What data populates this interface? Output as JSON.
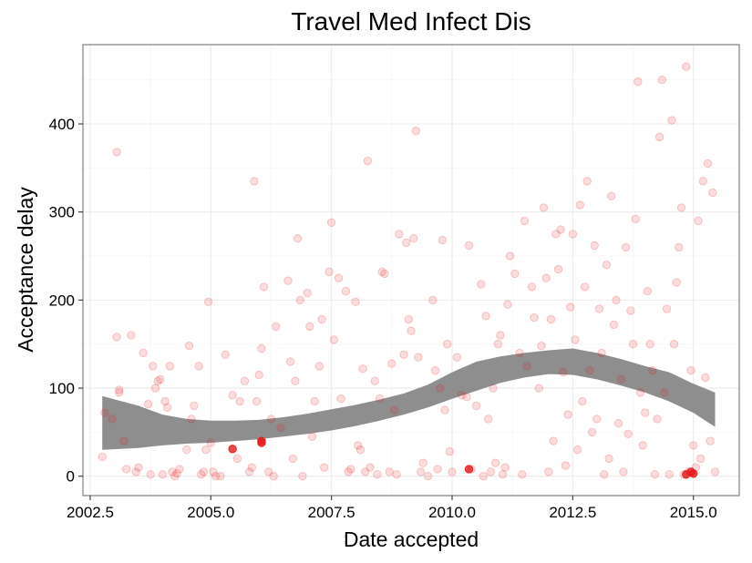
{
  "chart_data": {
    "type": "scatter",
    "title": "Travel Med Infect Dis",
    "xlabel": "Date accepted",
    "ylabel": "Acceptance delay",
    "xlim": [
      2002.35,
      2015.95
    ],
    "ylim": [
      -22,
      490
    ],
    "x_ticks": [
      2002.5,
      2005.0,
      2007.5,
      2010.0,
      2012.5,
      2015.0
    ],
    "x_tick_labels": [
      "2002.5",
      "2005.0",
      "2007.5",
      "2010.0",
      "2012.5",
      "2015.0"
    ],
    "y_ticks": [
      0,
      100,
      200,
      300,
      400
    ],
    "y_tick_labels": [
      "0",
      "100",
      "200",
      "300",
      "400"
    ],
    "grid": true,
    "legend": "none",
    "point_color": "#e41a1c",
    "point_opacity": 0.15,
    "highlight_opacity": 0.8,
    "band_color": "#888888",
    "series": [
      {
        "points": [
          [
            2002.75,
            22
          ],
          [
            2002.8,
            72
          ],
          [
            2002.95,
            65
          ],
          [
            2003.05,
            368
          ],
          [
            2003.05,
            158
          ],
          [
            2003.1,
            95
          ],
          [
            2003.1,
            98
          ],
          [
            2003.2,
            40
          ],
          [
            2003.25,
            8
          ],
          [
            2003.35,
            160
          ],
          [
            2003.45,
            5
          ],
          [
            2003.5,
            10
          ],
          [
            2003.6,
            140
          ],
          [
            2003.7,
            82
          ],
          [
            2003.75,
            2
          ],
          [
            2003.8,
            125
          ],
          [
            2003.85,
            100
          ],
          [
            2003.9,
            108
          ],
          [
            2003.95,
            110
          ],
          [
            2004.0,
            2
          ],
          [
            2004.05,
            85
          ],
          [
            2004.1,
            78
          ],
          [
            2004.15,
            125
          ],
          [
            2004.2,
            5
          ],
          [
            2004.25,
            0
          ],
          [
            2004.3,
            3
          ],
          [
            2004.35,
            8
          ],
          [
            2004.5,
            30
          ],
          [
            2004.55,
            148
          ],
          [
            2004.6,
            65
          ],
          [
            2004.65,
            80
          ],
          [
            2004.75,
            125
          ],
          [
            2004.8,
            2
          ],
          [
            2004.85,
            5
          ],
          [
            2004.9,
            30
          ],
          [
            2004.95,
            198
          ],
          [
            2005.0,
            38
          ],
          [
            2005.05,
            5
          ],
          [
            2005.1,
            0
          ],
          [
            2005.2,
            0
          ],
          [
            2005.3,
            138
          ],
          [
            2005.45,
            92
          ],
          [
            2005.55,
            20
          ],
          [
            2005.6,
            85
          ],
          [
            2005.7,
            108
          ],
          [
            2005.8,
            5
          ],
          [
            2005.85,
            10
          ],
          [
            2005.9,
            335
          ],
          [
            2005.95,
            85
          ],
          [
            2006.0,
            115
          ],
          [
            2006.05,
            145
          ],
          [
            2006.1,
            215
          ],
          [
            2006.2,
            5
          ],
          [
            2006.25,
            65
          ],
          [
            2006.3,
            0
          ],
          [
            2006.35,
            170
          ],
          [
            2006.45,
            55
          ],
          [
            2006.6,
            222
          ],
          [
            2006.65,
            130
          ],
          [
            2006.7,
            20
          ],
          [
            2006.75,
            108
          ],
          [
            2006.8,
            270
          ],
          [
            2006.85,
            200
          ],
          [
            2006.9,
            0
          ],
          [
            2007.0,
            208
          ],
          [
            2007.05,
            170
          ],
          [
            2007.1,
            45
          ],
          [
            2007.15,
            85
          ],
          [
            2007.25,
            125
          ],
          [
            2007.3,
            178
          ],
          [
            2007.35,
            10
          ],
          [
            2007.45,
            232
          ],
          [
            2007.5,
            288
          ],
          [
            2007.55,
            155
          ],
          [
            2007.65,
            225
          ],
          [
            2007.7,
            88
          ],
          [
            2007.8,
            210
          ],
          [
            2007.85,
            5
          ],
          [
            2007.9,
            8
          ],
          [
            2008.0,
            198
          ],
          [
            2008.05,
            35
          ],
          [
            2008.1,
            30
          ],
          [
            2008.15,
            122
          ],
          [
            2008.2,
            5
          ],
          [
            2008.25,
            358
          ],
          [
            2008.3,
            10
          ],
          [
            2008.4,
            108
          ],
          [
            2008.45,
            2
          ],
          [
            2008.5,
            88
          ],
          [
            2008.55,
            232
          ],
          [
            2008.6,
            230
          ],
          [
            2008.7,
            5
          ],
          [
            2008.75,
            128
          ],
          [
            2008.8,
            75
          ],
          [
            2008.85,
            2
          ],
          [
            2008.9,
            275
          ],
          [
            2009.0,
            138
          ],
          [
            2009.05,
            265
          ],
          [
            2009.1,
            178
          ],
          [
            2009.15,
            165
          ],
          [
            2009.2,
            270
          ],
          [
            2009.25,
            392
          ],
          [
            2009.3,
            135
          ],
          [
            2009.35,
            5
          ],
          [
            2009.4,
            15
          ],
          [
            2009.5,
            0
          ],
          [
            2009.6,
            200
          ],
          [
            2009.65,
            120
          ],
          [
            2009.7,
            8
          ],
          [
            2009.75,
            100
          ],
          [
            2009.8,
            268
          ],
          [
            2009.85,
            75
          ],
          [
            2009.9,
            150
          ],
          [
            2009.95,
            28
          ],
          [
            2010.0,
            5
          ],
          [
            2010.1,
            135
          ],
          [
            2010.2,
            92
          ],
          [
            2010.3,
            90
          ],
          [
            2010.35,
            262
          ],
          [
            2010.4,
            8
          ],
          [
            2010.5,
            80
          ],
          [
            2010.6,
            218
          ],
          [
            2010.65,
            0
          ],
          [
            2010.7,
            182
          ],
          [
            2010.75,
            65
          ],
          [
            2010.8,
            5
          ],
          [
            2010.85,
            100
          ],
          [
            2010.9,
            15
          ],
          [
            2010.95,
            150
          ],
          [
            2011.0,
            160
          ],
          [
            2011.05,
            2
          ],
          [
            2011.1,
            10
          ],
          [
            2011.15,
            195
          ],
          [
            2011.2,
            250
          ],
          [
            2011.3,
            230
          ],
          [
            2011.4,
            140
          ],
          [
            2011.45,
            2
          ],
          [
            2011.5,
            290
          ],
          [
            2011.55,
            125
          ],
          [
            2011.65,
            215
          ],
          [
            2011.7,
            180
          ],
          [
            2011.8,
            100
          ],
          [
            2011.85,
            148
          ],
          [
            2011.9,
            305
          ],
          [
            2011.95,
            225
          ],
          [
            2012.0,
            5
          ],
          [
            2012.05,
            178
          ],
          [
            2012.1,
            40
          ],
          [
            2012.15,
            275
          ],
          [
            2012.2,
            235
          ],
          [
            2012.25,
            280
          ],
          [
            2012.3,
            118
          ],
          [
            2012.35,
            12
          ],
          [
            2012.4,
            70
          ],
          [
            2012.45,
            192
          ],
          [
            2012.5,
            275
          ],
          [
            2012.55,
            155
          ],
          [
            2012.6,
            30
          ],
          [
            2012.65,
            308
          ],
          [
            2012.7,
            85
          ],
          [
            2012.75,
            215
          ],
          [
            2012.8,
            335
          ],
          [
            2012.85,
            120
          ],
          [
            2012.9,
            50
          ],
          [
            2012.95,
            262
          ],
          [
            2013.0,
            65
          ],
          [
            2013.05,
            190
          ],
          [
            2013.1,
            140
          ],
          [
            2013.15,
            2
          ],
          [
            2013.2,
            240
          ],
          [
            2013.25,
            20
          ],
          [
            2013.3,
            318
          ],
          [
            2013.35,
            172
          ],
          [
            2013.4,
            200
          ],
          [
            2013.45,
            60
          ],
          [
            2013.5,
            110
          ],
          [
            2013.55,
            5
          ],
          [
            2013.6,
            260
          ],
          [
            2013.65,
            48
          ],
          [
            2013.7,
            188
          ],
          [
            2013.75,
            150
          ],
          [
            2013.8,
            292
          ],
          [
            2013.85,
            448
          ],
          [
            2013.9,
            95
          ],
          [
            2013.95,
            35
          ],
          [
            2014.0,
            72
          ],
          [
            2014.05,
            210
          ],
          [
            2014.1,
            150
          ],
          [
            2014.15,
            120
          ],
          [
            2014.2,
            2
          ],
          [
            2014.25,
            65
          ],
          [
            2014.3,
            385
          ],
          [
            2014.35,
            450
          ],
          [
            2014.4,
            95
          ],
          [
            2014.45,
            190
          ],
          [
            2014.5,
            2
          ],
          [
            2014.55,
            404
          ],
          [
            2014.6,
            150
          ],
          [
            2014.65,
            220
          ],
          [
            2014.7,
            260
          ],
          [
            2014.75,
            305
          ],
          [
            2014.8,
            2
          ],
          [
            2014.85,
            465
          ],
          [
            2014.9,
            5
          ],
          [
            2014.95,
            120
          ],
          [
            2015.0,
            35
          ],
          [
            2015.05,
            10
          ],
          [
            2015.1,
            290
          ],
          [
            2015.15,
            20
          ],
          [
            2015.2,
            335
          ],
          [
            2015.25,
            112
          ],
          [
            2015.3,
            355
          ],
          [
            2015.35,
            40
          ],
          [
            2015.4,
            322
          ],
          [
            2015.45,
            5
          ]
        ]
      },
      {
        "points": [
          [
            2005.45,
            31
          ],
          [
            2006.05,
            38
          ],
          [
            2006.05,
            40
          ],
          [
            2010.35,
            8
          ],
          [
            2014.85,
            2
          ],
          [
            2014.95,
            5
          ],
          [
            2015.0,
            3
          ]
        ]
      }
    ],
    "smooth_band": {
      "x": [
        2002.75,
        2003.5,
        2004.0,
        2004.5,
        2005.0,
        2005.5,
        2006.0,
        2006.5,
        2007.0,
        2007.5,
        2008.0,
        2008.5,
        2009.0,
        2009.5,
        2010.0,
        2010.5,
        2011.0,
        2011.5,
        2012.0,
        2012.5,
        2013.0,
        2013.5,
        2014.0,
        2014.5,
        2015.0,
        2015.45
      ],
      "lower": [
        30,
        32,
        35,
        37,
        38,
        40,
        42,
        45,
        48,
        52,
        57,
        63,
        70,
        78,
        88,
        97,
        106,
        112,
        116,
        115,
        110,
        103,
        95,
        85,
        72,
        56
      ],
      "upper": [
        91,
        80,
        70,
        65,
        63,
        63,
        64,
        67,
        71,
        76,
        81,
        87,
        94,
        104,
        118,
        130,
        136,
        140,
        143,
        145,
        140,
        133,
        125,
        118,
        105,
        95
      ]
    }
  }
}
